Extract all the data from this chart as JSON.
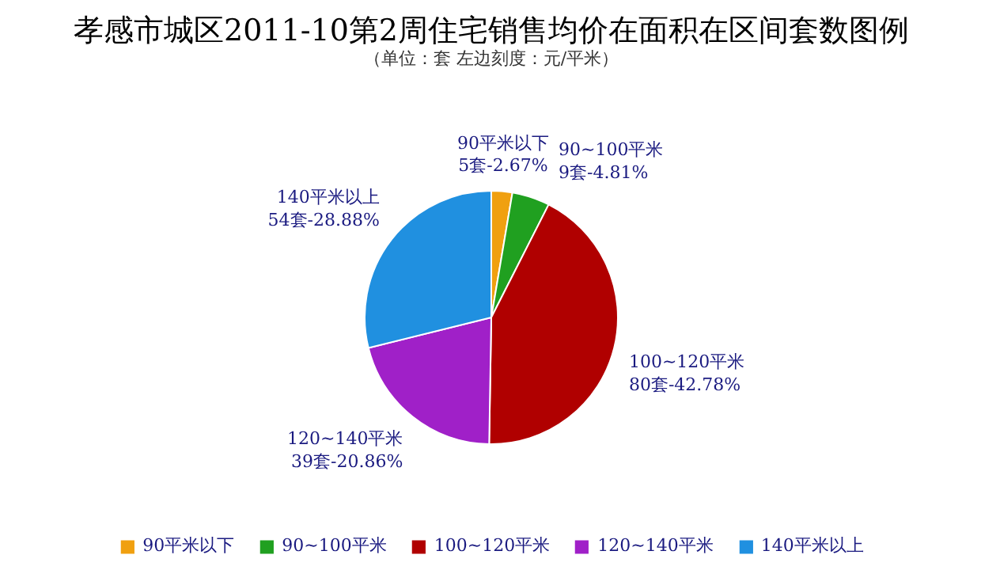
{
  "chart_data": {
    "type": "pie",
    "title": "孝感市城区2011-10第2周住宅销售均价在面积在区间套数图例",
    "subtitle": "（单位：套 左边刻度：元/平米）",
    "categories": [
      "90平米以下",
      "90~100平米",
      "100~120平米",
      "120~140平米",
      "140平米以上"
    ],
    "values": [
      5,
      9,
      80,
      39,
      54
    ],
    "colors": [
      "#f0a010",
      "#20a020",
      "#b00000",
      "#a020c8",
      "#2090e0"
    ],
    "value_labels": [
      "5套-2.67%",
      "9套-4.81%",
      "80套-42.78%",
      "39套-20.86%",
      "54套-28.88%"
    ],
    "legend": "bottom"
  }
}
